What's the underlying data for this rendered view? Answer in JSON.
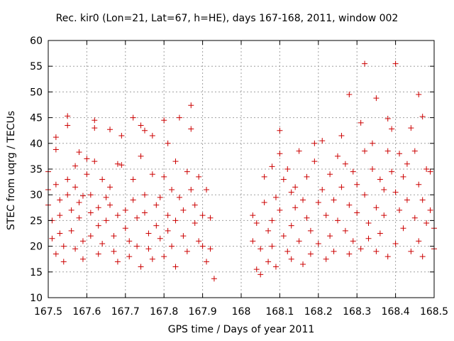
{
  "chart_data": {
    "type": "scatter",
    "title": "Rec. kir0 (Lon=21, Lat=67, h=HE), days 167-168, 2011, window 002",
    "xlabel": "GPS time / Days of year 2011",
    "ylabel": "STEC from uqrg / TECUs",
    "xlim": [
      167.5,
      168.5
    ],
    "ylim": [
      10,
      60
    ],
    "xticks": [
      "167.5",
      "167.6",
      "167.7",
      "167.8",
      "167.9",
      "168",
      "168.1",
      "168.2",
      "168.3",
      "168.4",
      "168.5"
    ],
    "yticks": [
      "10",
      "15",
      "20",
      "25",
      "30",
      "35",
      "40",
      "45",
      "50",
      "55",
      "60"
    ],
    "grid": true,
    "marker": "+",
    "color": "#cc0000",
    "series": [
      {
        "points": [
          [
            167.5,
            34.5
          ],
          [
            167.5,
            31.0
          ],
          [
            167.5,
            28.0
          ],
          [
            167.51,
            25.0
          ],
          [
            167.51,
            21.5
          ],
          [
            167.52,
            18.5
          ],
          [
            167.52,
            41.2
          ],
          [
            167.52,
            38.8
          ],
          [
            167.52,
            32.0
          ],
          [
            167.53,
            29.0
          ],
          [
            167.53,
            26.0
          ],
          [
            167.53,
            22.5
          ],
          [
            167.54,
            20.0
          ],
          [
            167.54,
            17.0
          ],
          [
            167.55,
            45.3
          ],
          [
            167.55,
            43.5
          ],
          [
            167.55,
            33.0
          ],
          [
            167.55,
            30.0
          ],
          [
            167.56,
            27.0
          ],
          [
            167.56,
            23.0
          ],
          [
            167.57,
            35.6
          ],
          [
            167.57,
            31.5
          ],
          [
            167.57,
            19.5
          ],
          [
            167.58,
            38.3
          ],
          [
            167.58,
            28.5
          ],
          [
            167.58,
            25.5
          ],
          [
            167.59,
            29.8
          ],
          [
            167.59,
            21.0
          ],
          [
            167.59,
            17.5
          ],
          [
            167.6,
            37.0
          ],
          [
            167.6,
            34.0
          ],
          [
            167.61,
            30.0
          ],
          [
            167.61,
            26.5
          ],
          [
            167.61,
            22.0
          ],
          [
            167.62,
            44.5
          ],
          [
            167.62,
            43.0
          ],
          [
            167.62,
            36.5
          ],
          [
            167.63,
            27.5
          ],
          [
            167.63,
            24.0
          ],
          [
            167.63,
            18.5
          ],
          [
            167.64,
            33.0
          ],
          [
            167.64,
            20.5
          ],
          [
            167.65,
            29.5
          ],
          [
            167.65,
            25.0
          ],
          [
            167.66,
            42.7
          ],
          [
            167.66,
            31.5
          ],
          [
            167.66,
            28.0
          ],
          [
            167.67,
            22.0
          ],
          [
            167.67,
            19.0
          ],
          [
            167.68,
            36.0
          ],
          [
            167.68,
            26.0
          ],
          [
            167.68,
            17.0
          ],
          [
            167.69,
            41.5
          ],
          [
            167.69,
            35.8
          ],
          [
            167.7,
            27.0
          ],
          [
            167.7,
            23.5
          ],
          [
            167.71,
            21.0
          ],
          [
            167.71,
            18.0
          ],
          [
            167.72,
            45.0
          ],
          [
            167.72,
            33.0
          ],
          [
            167.72,
            29.0
          ],
          [
            167.73,
            25.5
          ],
          [
            167.73,
            20.0
          ],
          [
            167.74,
            43.5
          ],
          [
            167.74,
            37.5
          ],
          [
            167.74,
            16.0
          ],
          [
            167.75,
            42.5
          ],
          [
            167.75,
            30.0
          ],
          [
            167.75,
            26.5
          ],
          [
            167.76,
            22.5
          ],
          [
            167.76,
            19.5
          ],
          [
            167.77,
            41.5
          ],
          [
            167.77,
            34.0
          ],
          [
            167.77,
            17.5
          ],
          [
            167.78,
            28.0
          ],
          [
            167.78,
            24.0
          ],
          [
            167.79,
            29.5
          ],
          [
            167.79,
            21.5
          ],
          [
            167.8,
            44.5
          ],
          [
            167.8,
            33.5
          ],
          [
            167.8,
            18.0
          ],
          [
            167.81,
            40.0
          ],
          [
            167.81,
            26.0
          ],
          [
            167.81,
            23.0
          ],
          [
            167.82,
            31.0
          ],
          [
            167.82,
            20.0
          ],
          [
            167.83,
            36.5
          ],
          [
            167.83,
            25.0
          ],
          [
            167.83,
            16.0
          ],
          [
            167.84,
            45.0
          ],
          [
            167.84,
            29.5
          ],
          [
            167.85,
            27.0
          ],
          [
            167.85,
            22.0
          ],
          [
            167.86,
            19.0
          ],
          [
            167.86,
            34.5
          ],
          [
            167.87,
            47.4
          ],
          [
            167.87,
            42.8
          ],
          [
            167.87,
            31.0
          ],
          [
            167.88,
            28.0
          ],
          [
            167.88,
            24.5
          ],
          [
            167.89,
            33.5
          ],
          [
            167.89,
            21.0
          ],
          [
            167.9,
            26.0
          ],
          [
            167.9,
            20.0
          ],
          [
            167.91,
            31.0
          ],
          [
            167.91,
            17.0
          ],
          [
            167.92,
            25.5
          ],
          [
            167.92,
            19.5
          ],
          [
            167.93,
            13.7
          ],
          [
            168.03,
            26.0
          ],
          [
            168.03,
            21.0
          ],
          [
            168.04,
            15.5
          ],
          [
            168.04,
            24.5
          ],
          [
            168.05,
            19.5
          ],
          [
            168.05,
            14.5
          ],
          [
            168.06,
            33.5
          ],
          [
            168.06,
            28.5
          ],
          [
            168.07,
            23.0
          ],
          [
            168.07,
            17.0
          ],
          [
            168.08,
            35.5
          ],
          [
            168.08,
            25.0
          ],
          [
            168.08,
            20.0
          ],
          [
            168.09,
            29.5
          ],
          [
            168.09,
            16.0
          ],
          [
            168.1,
            42.5
          ],
          [
            168.1,
            38.0
          ],
          [
            168.1,
            27.0
          ],
          [
            168.11,
            33.0
          ],
          [
            168.11,
            22.0
          ],
          [
            168.12,
            35.0
          ],
          [
            168.12,
            19.0
          ],
          [
            168.13,
            30.5
          ],
          [
            168.13,
            24.0
          ],
          [
            168.13,
            17.5
          ],
          [
            168.14,
            31.5
          ],
          [
            168.14,
            27.5
          ],
          [
            168.15,
            21.0
          ],
          [
            168.15,
            38.5
          ],
          [
            168.16,
            29.0
          ],
          [
            168.16,
            16.5
          ],
          [
            168.17,
            33.5
          ],
          [
            168.17,
            25.5
          ],
          [
            168.18,
            23.0
          ],
          [
            168.18,
            18.5
          ],
          [
            168.19,
            40.0
          ],
          [
            168.19,
            36.5
          ],
          [
            168.2,
            28.5
          ],
          [
            168.2,
            20.5
          ],
          [
            168.21,
            40.5
          ],
          [
            168.21,
            31.0
          ],
          [
            168.22,
            26.0
          ],
          [
            168.22,
            17.5
          ],
          [
            168.23,
            34.0
          ],
          [
            168.23,
            22.0
          ],
          [
            168.24,
            29.0
          ],
          [
            168.24,
            19.0
          ],
          [
            168.25,
            37.5
          ],
          [
            168.25,
            25.0
          ],
          [
            168.26,
            41.5
          ],
          [
            168.26,
            31.5
          ],
          [
            168.27,
            36.0
          ],
          [
            168.27,
            23.0
          ],
          [
            168.28,
            49.5
          ],
          [
            168.28,
            28.0
          ],
          [
            168.28,
            18.5
          ],
          [
            168.29,
            34.5
          ],
          [
            168.29,
            21.0
          ],
          [
            168.3,
            32.0
          ],
          [
            168.3,
            26.5
          ],
          [
            168.31,
            44.0
          ],
          [
            168.31,
            19.5
          ],
          [
            168.32,
            55.5
          ],
          [
            168.32,
            38.5
          ],
          [
            168.32,
            30.0
          ],
          [
            168.33,
            24.5
          ],
          [
            168.33,
            21.5
          ],
          [
            168.34,
            40.0
          ],
          [
            168.34,
            35.0
          ],
          [
            168.35,
            48.8
          ],
          [
            168.35,
            27.5
          ],
          [
            168.35,
            19.0
          ],
          [
            168.36,
            33.0
          ],
          [
            168.36,
            22.5
          ],
          [
            168.37,
            31.0
          ],
          [
            168.37,
            26.0
          ],
          [
            168.38,
            44.8
          ],
          [
            168.38,
            38.5
          ],
          [
            168.38,
            18.0
          ],
          [
            168.39,
            42.8
          ],
          [
            168.39,
            34.5
          ],
          [
            168.4,
            55.5
          ],
          [
            168.4,
            30.5
          ],
          [
            168.4,
            20.5
          ],
          [
            168.41,
            38.0
          ],
          [
            168.41,
            27.0
          ],
          [
            168.42,
            33.5
          ],
          [
            168.42,
            23.5
          ],
          [
            168.43,
            36.0
          ],
          [
            168.43,
            29.0
          ],
          [
            168.44,
            43.0
          ],
          [
            168.44,
            19.0
          ],
          [
            168.45,
            38.5
          ],
          [
            168.45,
            25.5
          ],
          [
            168.46,
            49.5
          ],
          [
            168.46,
            32.0
          ],
          [
            168.46,
            21.0
          ],
          [
            168.47,
            45.2
          ],
          [
            168.47,
            29.0
          ],
          [
            168.47,
            18.0
          ],
          [
            168.48,
            35.0
          ],
          [
            168.48,
            24.5
          ],
          [
            168.49,
            34.5
          ],
          [
            168.49,
            27.0
          ],
          [
            168.5,
            23.5
          ],
          [
            168.5,
            19.5
          ]
        ]
      }
    ]
  }
}
